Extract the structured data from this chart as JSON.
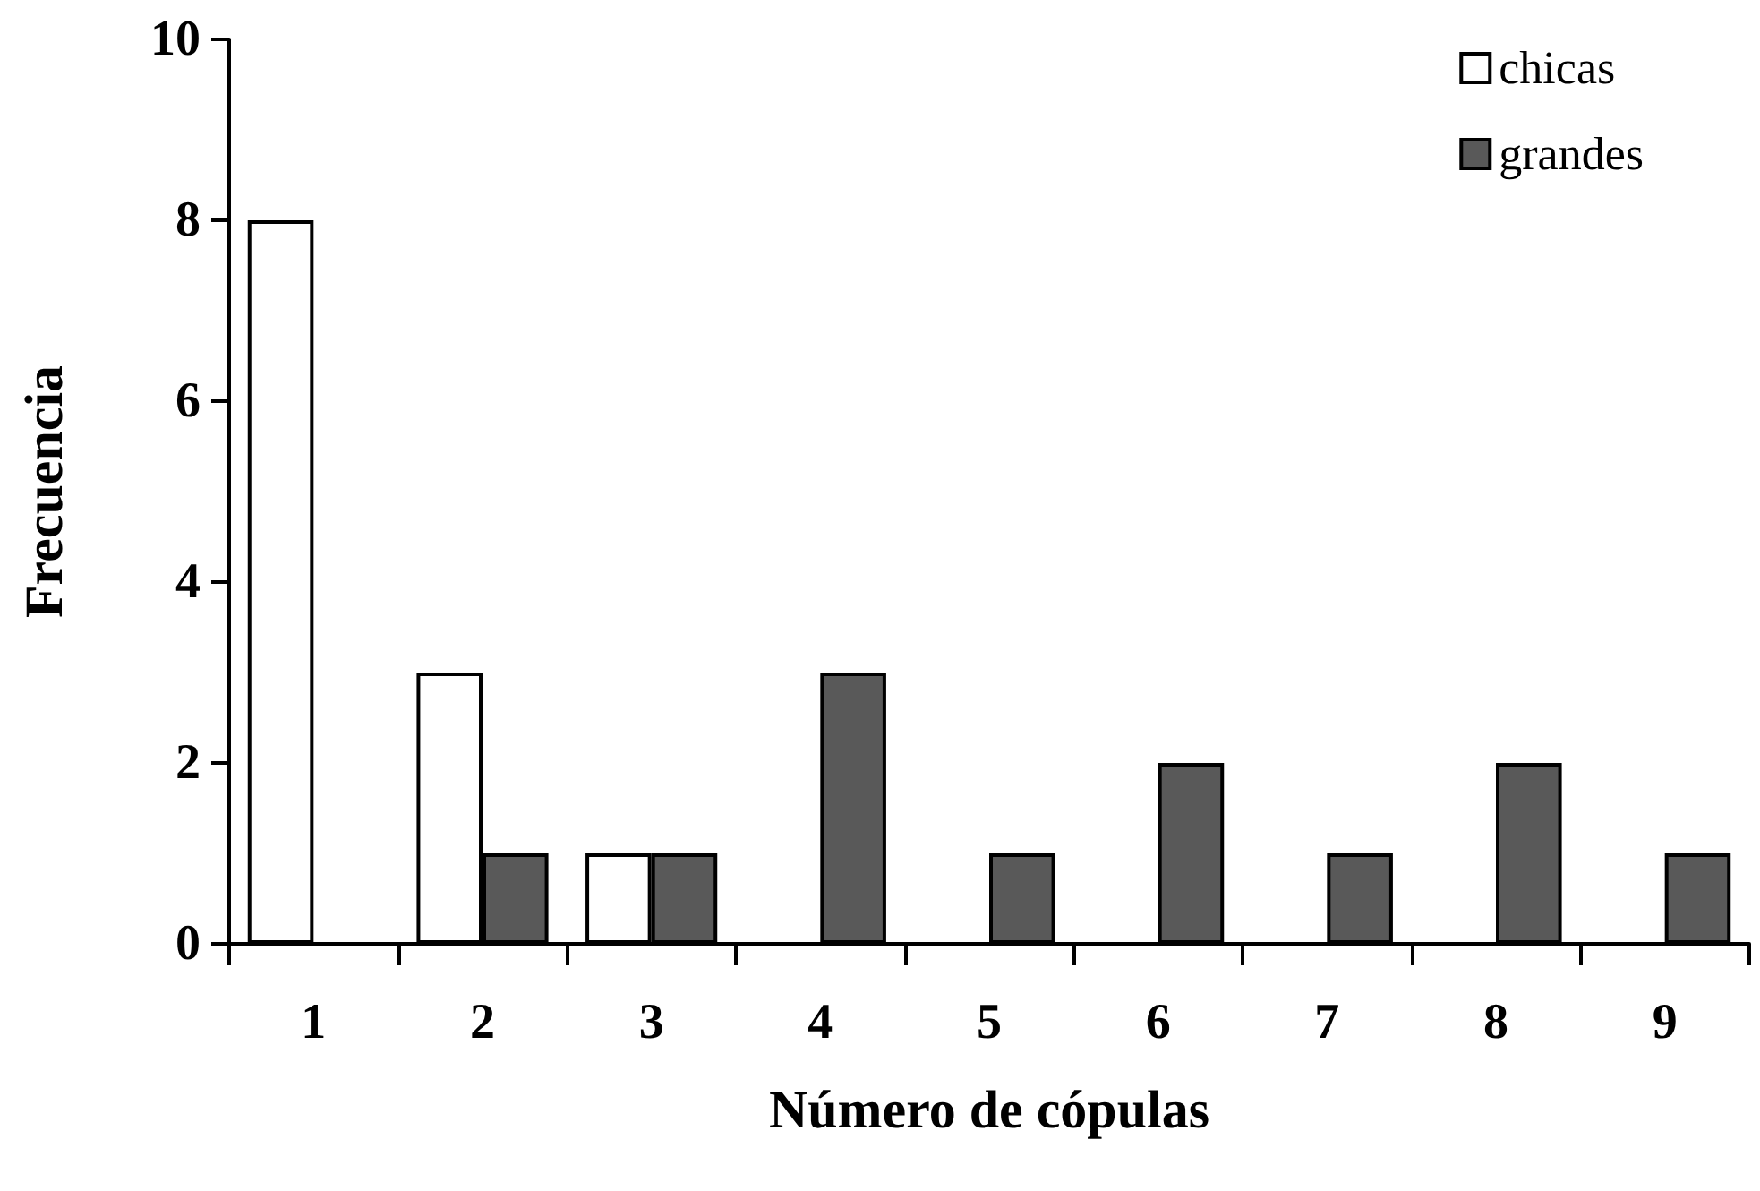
{
  "chart_data": {
    "type": "bar",
    "xlabel": "Número de cópulas",
    "ylabel": "Frecuencia",
    "categories": [
      "1",
      "2",
      "3",
      "4",
      "5",
      "6",
      "7",
      "8",
      "9"
    ],
    "series": [
      {
        "name": "chicas",
        "color": "#ffffff",
        "values": [
          8,
          3,
          1,
          0,
          0,
          0,
          0,
          0,
          0
        ]
      },
      {
        "name": "grandes",
        "color": "#595959",
        "values": [
          0,
          1,
          1,
          3,
          1,
          2,
          1,
          2,
          1
        ]
      }
    ],
    "ylim": [
      0,
      10
    ],
    "yticks": [
      0,
      2,
      4,
      6,
      8,
      10
    ],
    "grid": false,
    "legend": "top right"
  }
}
